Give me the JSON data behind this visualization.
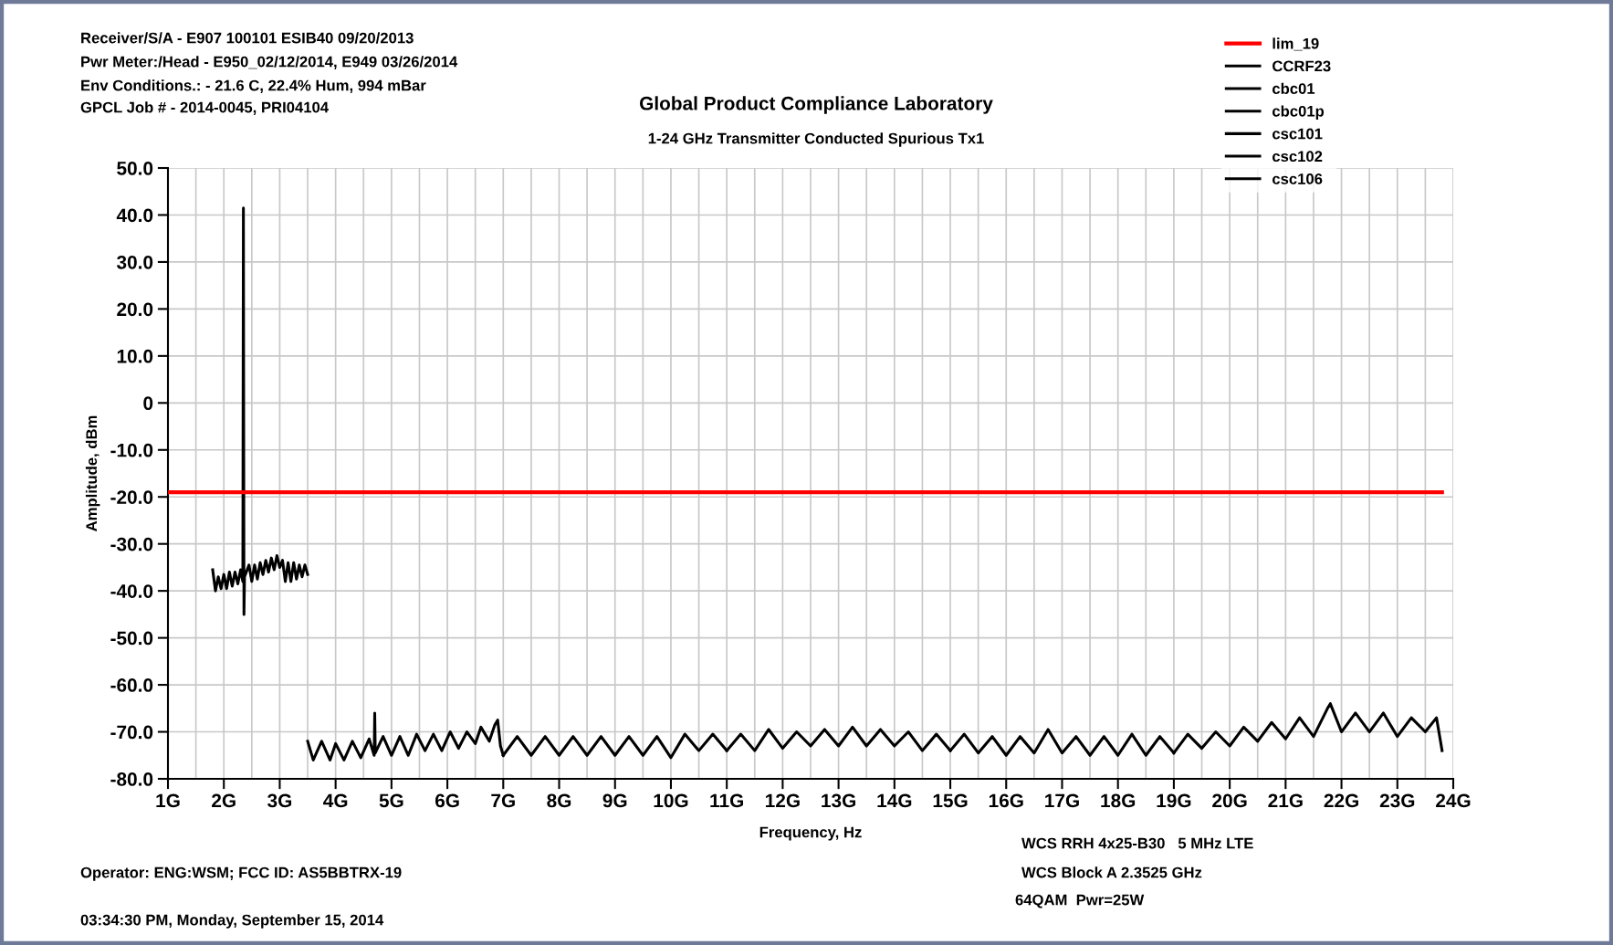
{
  "chart_data": {
    "type": "line",
    "title": "Global Product Compliance Laboratory",
    "subtitle": "1-24 GHz Transmitter Conducted Spurious Tx1",
    "xlabel": "Frequency, Hz",
    "ylabel": "Amplitude, dBm",
    "xlim": [
      1,
      24
    ],
    "ylim": [
      -80,
      50
    ],
    "xticks": [
      {
        "value": 1,
        "label": "1G"
      },
      {
        "value": 2,
        "label": "2G"
      },
      {
        "value": 3,
        "label": "3G"
      },
      {
        "value": 4,
        "label": "4G"
      },
      {
        "value": 5,
        "label": "5G"
      },
      {
        "value": 6,
        "label": "6G"
      },
      {
        "value": 7,
        "label": "7G"
      },
      {
        "value": 8,
        "label": "8G"
      },
      {
        "value": 9,
        "label": "9G"
      },
      {
        "value": 10,
        "label": "10G"
      },
      {
        "value": 11,
        "label": "11G"
      },
      {
        "value": 12,
        "label": "12G"
      },
      {
        "value": 13,
        "label": "13G"
      },
      {
        "value": 14,
        "label": "14G"
      },
      {
        "value": 15,
        "label": "15G"
      },
      {
        "value": 16,
        "label": "16G"
      },
      {
        "value": 17,
        "label": "17G"
      },
      {
        "value": 18,
        "label": "18G"
      },
      {
        "value": 19,
        "label": "19G"
      },
      {
        "value": 20,
        "label": "20G"
      },
      {
        "value": 21,
        "label": "21G"
      },
      {
        "value": 22,
        "label": "22G"
      },
      {
        "value": 23,
        "label": "23G"
      },
      {
        "value": 24,
        "label": "24G"
      }
    ],
    "yticks": [
      {
        "value": 50,
        "label": "50.0"
      },
      {
        "value": 40,
        "label": "40.0"
      },
      {
        "value": 30,
        "label": "30.0"
      },
      {
        "value": 20,
        "label": "20.0"
      },
      {
        "value": 10,
        "label": "10.0"
      },
      0,
      {
        "value": -10,
        "label": "-10.0"
      },
      {
        "value": -20,
        "label": "-20.0"
      },
      {
        "value": -30,
        "label": "-30.0"
      },
      {
        "value": -40,
        "label": "-40.0"
      },
      {
        "value": -50,
        "label": "-50.0"
      },
      {
        "value": -60,
        "label": "-60.0"
      },
      {
        "value": -70,
        "label": "-70.0"
      },
      {
        "value": -80,
        "label": "-80.0"
      }
    ],
    "grid": true,
    "legend": "top right",
    "marker": "none",
    "line_style": "solid",
    "series": [
      {
        "name": "lim_19",
        "color": "#ff0000",
        "x": [
          1,
          23.8
        ],
        "values": [
          -19,
          -19
        ]
      },
      {
        "name": "CCRF23",
        "color": "#000000",
        "x": [
          1.8,
          1.85,
          1.9,
          1.95,
          2.0,
          2.05,
          2.1,
          2.15,
          2.2,
          2.25,
          2.3,
          2.34,
          2.35,
          2.36,
          2.37,
          2.45,
          2.5,
          2.55,
          2.6,
          2.65,
          2.7,
          2.75,
          2.8,
          2.85,
          2.9,
          2.95,
          3.0,
          3.05,
          3.1,
          3.15,
          3.2,
          3.25,
          3.3,
          3.35,
          3.4,
          3.45,
          3.5
        ],
        "values": [
          -35.5,
          -40,
          -37,
          -39.5,
          -36.5,
          -39.5,
          -36,
          -39,
          -36,
          -38.5,
          -35.5,
          -38,
          41.5,
          -45,
          -37,
          -34.5,
          -38,
          -34.5,
          -37.5,
          -34,
          -36.5,
          -33.5,
          -36,
          -33,
          -35.5,
          -32.5,
          -35,
          -33.5,
          -38,
          -34,
          -38,
          -34,
          -37.5,
          -34.5,
          -37,
          -34.5,
          -36.5
        ]
      },
      {
        "name": "cbc01",
        "color": "#000000",
        "x": [
          3.5,
          3.6,
          3.75,
          3.9,
          4.0,
          4.15,
          4.3,
          4.45,
          4.6,
          4.69,
          4.7,
          4.71,
          4.85,
          5.0,
          5.15,
          5.3,
          5.45,
          5.6,
          5.75,
          5.9,
          6.05,
          6.2,
          6.35,
          6.5,
          6.6,
          6.75,
          6.85,
          6.9,
          6.95,
          7.0
        ],
        "values": [
          -72,
          -76,
          -72,
          -76,
          -72.5,
          -76,
          -72,
          -75.5,
          -71.5,
          -75,
          -66,
          -74.5,
          -71,
          -75,
          -71,
          -75,
          -70.5,
          -74,
          -70.5,
          -74,
          -70,
          -73.5,
          -70,
          -72.5,
          -69,
          -72,
          -68.5,
          -67.5,
          -73,
          -75
        ]
      },
      {
        "name": "cbc01p",
        "color": "#000000",
        "x": [
          7.0,
          7.25,
          7.5,
          7.75,
          8.0,
          8.25,
          8.5,
          8.75,
          9.0,
          9.25,
          9.5,
          9.75,
          10.0,
          10.25,
          10.5,
          10.75,
          11.0
        ],
        "values": [
          -75,
          -71,
          -75,
          -71,
          -75,
          -71,
          -75,
          -71,
          -75,
          -71,
          -75,
          -71,
          -75.5,
          -70.5,
          -74,
          -70.5,
          -74
        ]
      },
      {
        "name": "csc101",
        "color": "#000000",
        "x": [
          11.0,
          11.25,
          11.5,
          11.75,
          12.0,
          12.25,
          12.5,
          12.75,
          13.0,
          13.25,
          13.5,
          13.75,
          14.0,
          14.25,
          14.5,
          14.75,
          15.0
        ],
        "values": [
          -74,
          -70.5,
          -74,
          -69.5,
          -73.5,
          -70,
          -73,
          -69.5,
          -73,
          -69,
          -73,
          -69.5,
          -73,
          -70,
          -74,
          -70.5,
          -74
        ]
      },
      {
        "name": "csc102",
        "color": "#000000",
        "x": [
          15.0,
          15.25,
          15.5,
          15.75,
          16.0,
          16.25,
          16.5,
          16.75,
          17.0,
          17.25,
          17.5,
          17.75,
          18.0,
          18.25,
          18.5,
          18.75,
          19.0
        ],
        "values": [
          -74,
          -70.5,
          -74.5,
          -71,
          -75,
          -71,
          -74.5,
          -69.5,
          -74.5,
          -71,
          -75,
          -71,
          -75,
          -70.5,
          -75,
          -71,
          -74.5
        ]
      },
      {
        "name": "csc106",
        "color": "#000000",
        "x": [
          19.0,
          19.25,
          19.5,
          19.75,
          20.0,
          20.25,
          20.5,
          20.75,
          21.0,
          21.25,
          21.5,
          21.75,
          21.8,
          22.0,
          22.25,
          22.5,
          22.75,
          23.0,
          23.25,
          23.5,
          23.7,
          23.8
        ],
        "values": [
          -74.5,
          -70.5,
          -73.5,
          -70,
          -73,
          -69,
          -72,
          -68,
          -71.5,
          -67,
          -71,
          -65,
          -64,
          -70,
          -66,
          -70,
          -66,
          -71,
          -67,
          -70,
          -67,
          -74
        ]
      }
    ],
    "annotations": [
      "Receiver/S/A - E907 100101 ESIB40 09/20/2013",
      "Pwr Meter:/Head - E950_02/12/2014, E949 03/26/2014",
      "Env Conditions.: - 21.6 C, 22.4% Hum, 994 mBar",
      "GPCL Job # - 2014-0045, PRI04104",
      "Operator: ENG:WSM; FCC ID: AS5BBTRX-19",
      "03:34:30 PM, Monday, September 15, 2014",
      "WCS RRH 4x25-B30   5 MHz LTE",
      "WCS Block A 2.3525 GHz",
      "64QAM  Pwr=25W"
    ]
  }
}
